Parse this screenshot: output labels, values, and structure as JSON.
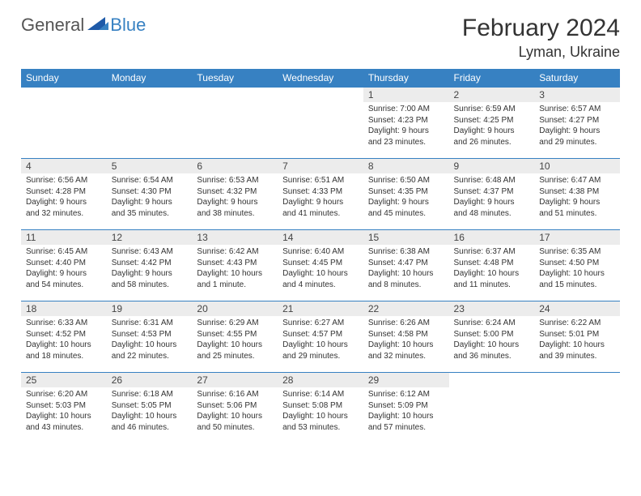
{
  "brand": {
    "general": "General",
    "blue": "Blue"
  },
  "title": "February 2024",
  "location": "Lyman, Ukraine",
  "colors": {
    "header_bg": "#3781c2",
    "header_fg": "#ffffff",
    "daynum_bg": "#ececec",
    "border": "#3781c2",
    "text": "#333333"
  },
  "days_of_week": [
    "Sunday",
    "Monday",
    "Tuesday",
    "Wednesday",
    "Thursday",
    "Friday",
    "Saturday"
  ],
  "first_weekday_index": 4,
  "days": [
    {
      "n": 1,
      "sunrise": "7:00 AM",
      "sunset": "4:23 PM",
      "daylight": "9 hours and 23 minutes."
    },
    {
      "n": 2,
      "sunrise": "6:59 AM",
      "sunset": "4:25 PM",
      "daylight": "9 hours and 26 minutes."
    },
    {
      "n": 3,
      "sunrise": "6:57 AM",
      "sunset": "4:27 PM",
      "daylight": "9 hours and 29 minutes."
    },
    {
      "n": 4,
      "sunrise": "6:56 AM",
      "sunset": "4:28 PM",
      "daylight": "9 hours and 32 minutes."
    },
    {
      "n": 5,
      "sunrise": "6:54 AM",
      "sunset": "4:30 PM",
      "daylight": "9 hours and 35 minutes."
    },
    {
      "n": 6,
      "sunrise": "6:53 AM",
      "sunset": "4:32 PM",
      "daylight": "9 hours and 38 minutes."
    },
    {
      "n": 7,
      "sunrise": "6:51 AM",
      "sunset": "4:33 PM",
      "daylight": "9 hours and 41 minutes."
    },
    {
      "n": 8,
      "sunrise": "6:50 AM",
      "sunset": "4:35 PM",
      "daylight": "9 hours and 45 minutes."
    },
    {
      "n": 9,
      "sunrise": "6:48 AM",
      "sunset": "4:37 PM",
      "daylight": "9 hours and 48 minutes."
    },
    {
      "n": 10,
      "sunrise": "6:47 AM",
      "sunset": "4:38 PM",
      "daylight": "9 hours and 51 minutes."
    },
    {
      "n": 11,
      "sunrise": "6:45 AM",
      "sunset": "4:40 PM",
      "daylight": "9 hours and 54 minutes."
    },
    {
      "n": 12,
      "sunrise": "6:43 AM",
      "sunset": "4:42 PM",
      "daylight": "9 hours and 58 minutes."
    },
    {
      "n": 13,
      "sunrise": "6:42 AM",
      "sunset": "4:43 PM",
      "daylight": "10 hours and 1 minute."
    },
    {
      "n": 14,
      "sunrise": "6:40 AM",
      "sunset": "4:45 PM",
      "daylight": "10 hours and 4 minutes."
    },
    {
      "n": 15,
      "sunrise": "6:38 AM",
      "sunset": "4:47 PM",
      "daylight": "10 hours and 8 minutes."
    },
    {
      "n": 16,
      "sunrise": "6:37 AM",
      "sunset": "4:48 PM",
      "daylight": "10 hours and 11 minutes."
    },
    {
      "n": 17,
      "sunrise": "6:35 AM",
      "sunset": "4:50 PM",
      "daylight": "10 hours and 15 minutes."
    },
    {
      "n": 18,
      "sunrise": "6:33 AM",
      "sunset": "4:52 PM",
      "daylight": "10 hours and 18 minutes."
    },
    {
      "n": 19,
      "sunrise": "6:31 AM",
      "sunset": "4:53 PM",
      "daylight": "10 hours and 22 minutes."
    },
    {
      "n": 20,
      "sunrise": "6:29 AM",
      "sunset": "4:55 PM",
      "daylight": "10 hours and 25 minutes."
    },
    {
      "n": 21,
      "sunrise": "6:27 AM",
      "sunset": "4:57 PM",
      "daylight": "10 hours and 29 minutes."
    },
    {
      "n": 22,
      "sunrise": "6:26 AM",
      "sunset": "4:58 PM",
      "daylight": "10 hours and 32 minutes."
    },
    {
      "n": 23,
      "sunrise": "6:24 AM",
      "sunset": "5:00 PM",
      "daylight": "10 hours and 36 minutes."
    },
    {
      "n": 24,
      "sunrise": "6:22 AM",
      "sunset": "5:01 PM",
      "daylight": "10 hours and 39 minutes."
    },
    {
      "n": 25,
      "sunrise": "6:20 AM",
      "sunset": "5:03 PM",
      "daylight": "10 hours and 43 minutes."
    },
    {
      "n": 26,
      "sunrise": "6:18 AM",
      "sunset": "5:05 PM",
      "daylight": "10 hours and 46 minutes."
    },
    {
      "n": 27,
      "sunrise": "6:16 AM",
      "sunset": "5:06 PM",
      "daylight": "10 hours and 50 minutes."
    },
    {
      "n": 28,
      "sunrise": "6:14 AM",
      "sunset": "5:08 PM",
      "daylight": "10 hours and 53 minutes."
    },
    {
      "n": 29,
      "sunrise": "6:12 AM",
      "sunset": "5:09 PM",
      "daylight": "10 hours and 57 minutes."
    }
  ],
  "labels": {
    "sunrise": "Sunrise:",
    "sunset": "Sunset:",
    "daylight": "Daylight:"
  }
}
